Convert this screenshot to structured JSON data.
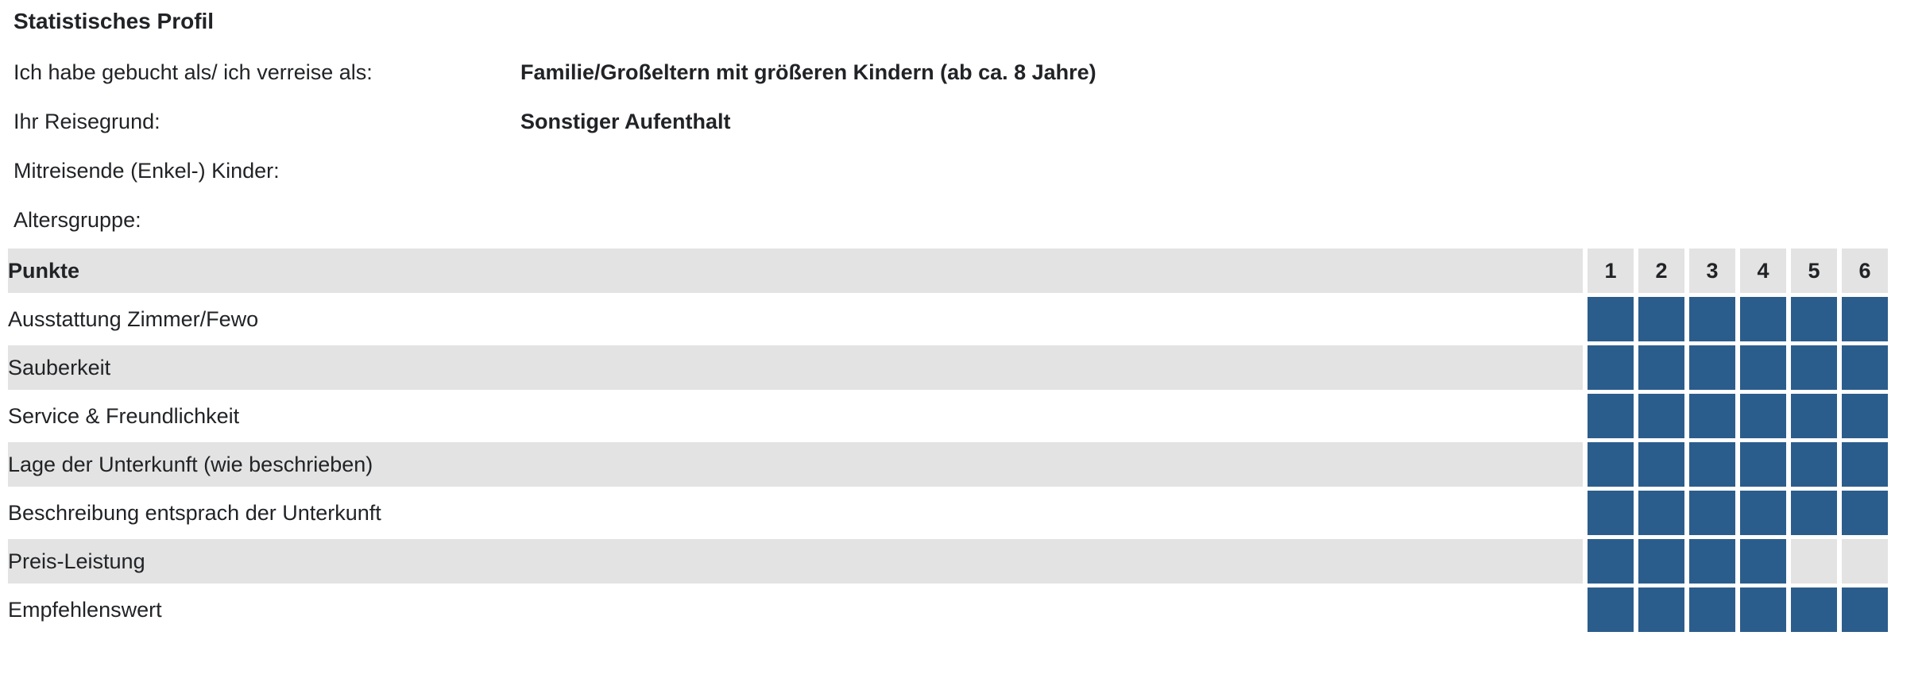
{
  "title": "Statistisches Profil",
  "profile": [
    {
      "label": "Ich habe gebucht als/ ich verreise als:",
      "value": "Familie/Großeltern mit größeren Kindern (ab ca. 8 Jahre)"
    },
    {
      "label": "Ihr Reisegrund:",
      "value": "Sonstiger Aufenthalt"
    },
    {
      "label": "Mitreisende (Enkel-) Kinder:",
      "value": ""
    },
    {
      "label": "Altersgruppe:",
      "value": ""
    }
  ],
  "ratings_table": {
    "header_label": "Punkte",
    "scale": [
      "1",
      "2",
      "3",
      "4",
      "5",
      "6"
    ],
    "max_points": 6,
    "rows": [
      {
        "label": "Ausstattung Zimmer/Fewo",
        "points": 6
      },
      {
        "label": "Sauberkeit",
        "points": 6
      },
      {
        "label": "Service & Freundlichkeit",
        "points": 6
      },
      {
        "label": "Lage der Unterkunft (wie beschrieben)",
        "points": 6
      },
      {
        "label": "Beschreibung entsprach der Unterkunft",
        "points": 6
      },
      {
        "label": "Preis-Leistung",
        "points": 4
      },
      {
        "label": "Empfehlenswert",
        "points": 6
      }
    ]
  },
  "colors": {
    "rating_filled": "#2b5d8c",
    "cell_empty": "#e3e3e3",
    "row_stripe": "#e3e3e3",
    "text": "#212326"
  }
}
